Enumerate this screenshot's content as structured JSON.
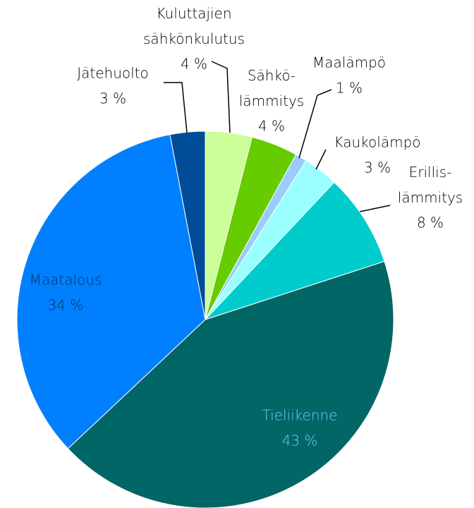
{
  "chart_data": {
    "type": "pie",
    "categories": [
      "Kuluttajien\nsähkönkulutus",
      "Sähkö-\nlämmitys",
      "Maalämpö",
      "Kaukolämpö",
      "Erillis-\nlämmitys",
      "Tieliikenne",
      "Maatalous",
      "Jätehuolto"
    ],
    "values": [
      4,
      4,
      1,
      3,
      8,
      43,
      34,
      3
    ],
    "value_labels": [
      "4 %",
      "4 %",
      "1 %",
      "3 %",
      "8 %",
      "43 %",
      "34 %",
      "3 %"
    ],
    "colors": [
      "#ccff99",
      "#66cc00",
      "#99ccff",
      "#99ffff",
      "#00cccc",
      "#006666",
      "#0080ff",
      "#004c99"
    ]
  }
}
